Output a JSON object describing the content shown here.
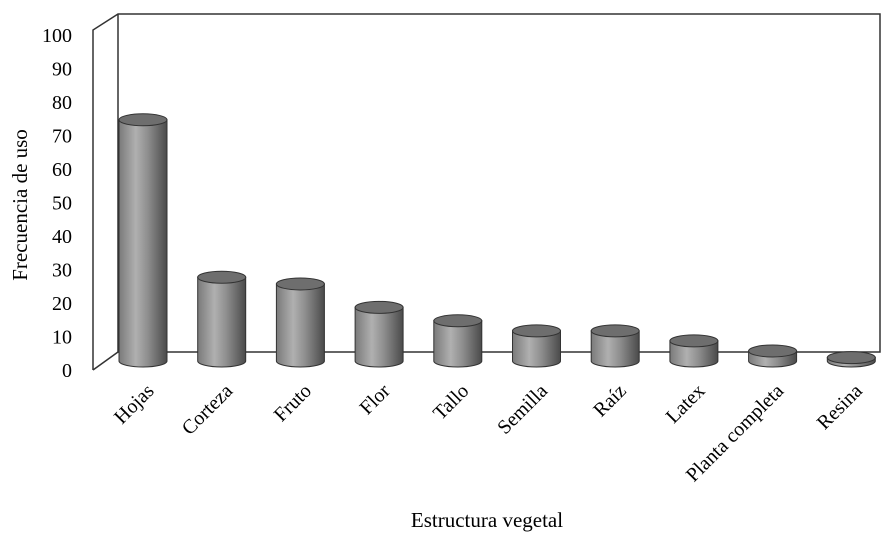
{
  "chart_data": {
    "type": "bar",
    "style": "3d-cylinder",
    "categories": [
      "Hojas",
      "Corteza",
      "Fruto",
      "Flor",
      "Tallo",
      "Semilla",
      "Raíz",
      "Latex",
      "Planta completa",
      "Resina"
    ],
    "values": [
      72,
      25,
      23,
      16,
      12,
      9,
      9,
      6,
      3,
      1
    ],
    "xlabel": "Estructura vegetal",
    "ylabel": "Frecuencia de uso",
    "ylim": [
      0,
      100
    ],
    "yticks": [
      0,
      10,
      20,
      30,
      40,
      50,
      60,
      70,
      80,
      90,
      100
    ],
    "grid": false,
    "legend": "none",
    "colors": {
      "bar_light": "#bdbdbd",
      "bar_mid": "#8c8c8c",
      "bar_dark": "#4a4a4a",
      "bar_top": "#6e6e6e",
      "axis": "#333333"
    }
  }
}
